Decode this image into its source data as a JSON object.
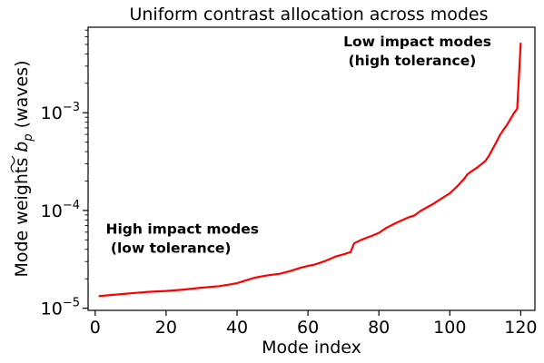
{
  "chart_data": {
    "type": "line",
    "title": "Uniform contrast allocation across modes",
    "xlabel": "Mode index",
    "ylabel_prefix": "Mode weights ",
    "ylabel_symbol": "b",
    "ylabel_subscript": "p",
    "ylabel_suffix": " (waves)",
    "y_scale": "log",
    "xlim": [
      -2,
      124
    ],
    "ylim": [
      9.5e-06,
      0.0075
    ],
    "x_ticks": [
      0,
      20,
      40,
      60,
      80,
      100,
      120
    ],
    "y_ticks": [
      {
        "value": 1e-05,
        "base": "10",
        "exp": "−5"
      },
      {
        "value": 0.0001,
        "base": "10",
        "exp": "−4"
      },
      {
        "value": 0.001,
        "base": "10",
        "exp": "−3"
      }
    ],
    "grid": false,
    "series": [
      {
        "color": "#ff0000",
        "x": [
          1,
          3,
          5,
          8,
          10,
          15,
          20,
          25,
          30,
          35,
          38,
          40,
          42,
          45,
          48,
          50,
          52,
          55,
          58,
          60,
          62,
          65,
          68,
          70,
          72,
          73,
          75,
          78,
          80,
          82,
          85,
          88,
          90,
          92,
          95,
          98,
          100,
          102,
          104,
          105,
          106,
          108,
          110,
          111,
          112,
          113,
          114,
          115,
          116,
          117,
          118,
          119,
          120
        ],
        "y": [
          1.33e-05,
          1.35e-05,
          1.37e-05,
          1.4e-05,
          1.42e-05,
          1.47e-05,
          1.5e-05,
          1.55e-05,
          1.62e-05,
          1.68e-05,
          1.75e-05,
          1.8e-05,
          1.9e-05,
          2.05e-05,
          2.15e-05,
          2.2e-05,
          2.25e-05,
          2.4e-05,
          2.6e-05,
          2.7e-05,
          2.8e-05,
          3.05e-05,
          3.4e-05,
          3.55e-05,
          3.75e-05,
          4.6e-05,
          5e-05,
          5.5e-05,
          5.9e-05,
          6.6e-05,
          7.5e-05,
          8.4e-05,
          8.9e-05,
          0.0001,
          0.000115,
          0.000135,
          0.00015,
          0.000175,
          0.00021,
          0.000235,
          0.00025,
          0.00028,
          0.00032,
          0.00036,
          0.00042,
          0.00049,
          0.00058,
          0.00066,
          0.00074,
          0.00085,
          0.00098,
          0.0011,
          0.0052
        ]
      }
    ],
    "annotations": [
      {
        "lines": [
          "Low impact modes",
          " (high tolerance)"
        ],
        "anchor_x": 70,
        "anchor_y": 0.0048
      },
      {
        "lines": [
          "High impact modes",
          " (low tolerance)"
        ],
        "anchor_x": 3,
        "anchor_y": 5.8e-05
      }
    ]
  }
}
